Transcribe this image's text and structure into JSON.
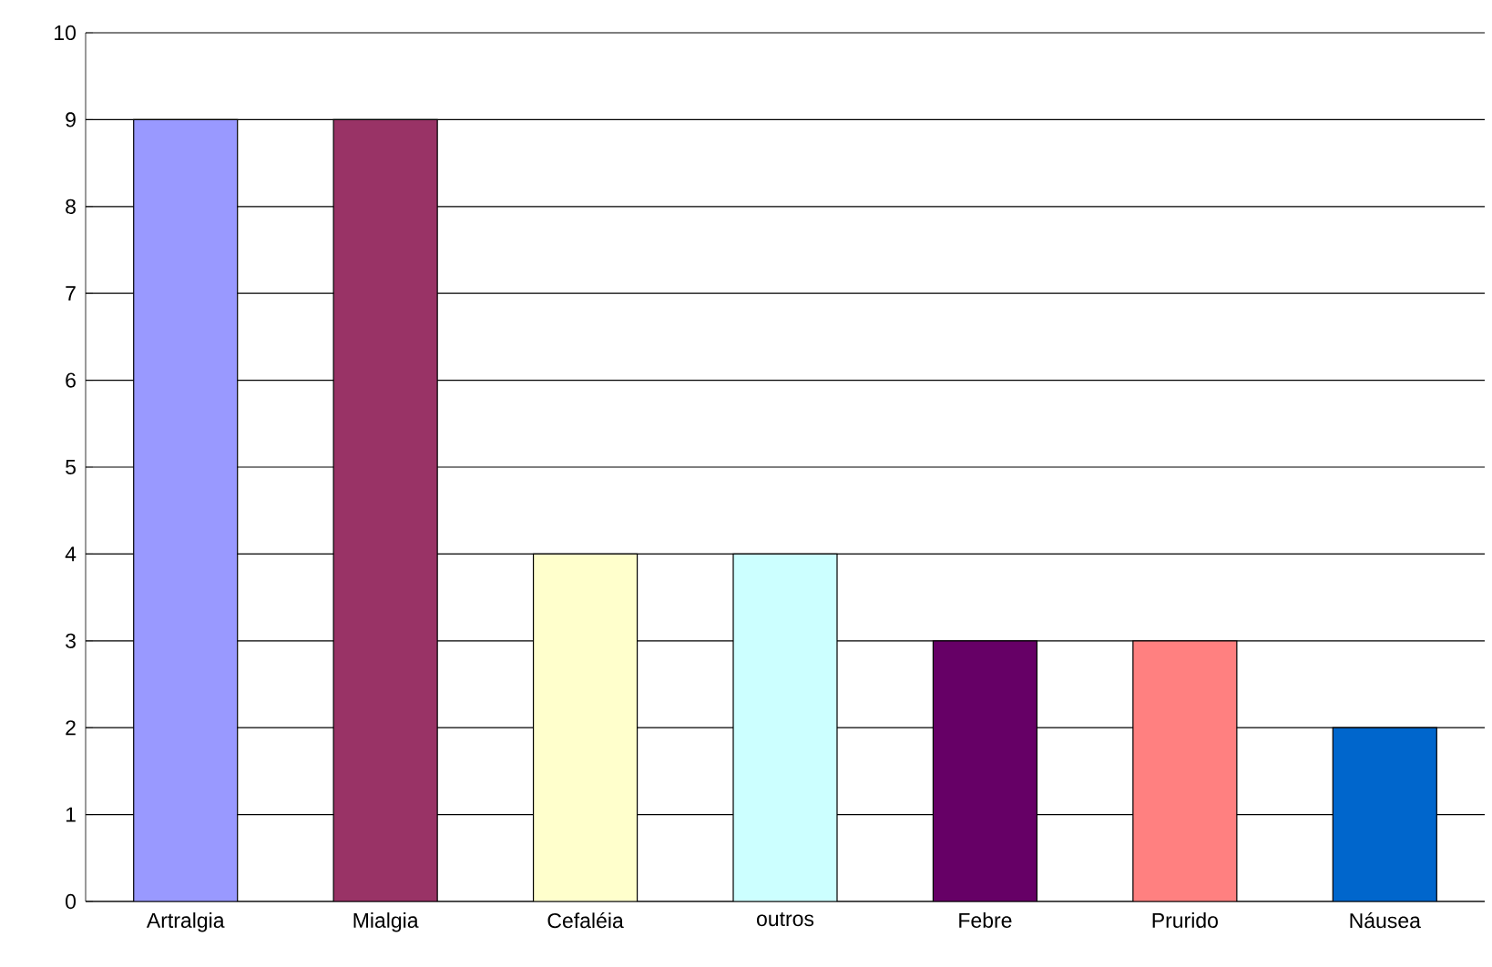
{
  "chart_data": {
    "type": "bar",
    "categories": [
      "Artralgia",
      "Mialgia",
      "Cefaléia",
      "outros",
      "Febre",
      "Prurido",
      "Náusea"
    ],
    "values": [
      9,
      9,
      4,
      4,
      3,
      3,
      2
    ],
    "colors": [
      "#9999ff",
      "#993366",
      "#ffffcc",
      "#ccffff",
      "#660066",
      "#ff8080",
      "#0066cc"
    ],
    "ylim": [
      0,
      10
    ],
    "yticks": [
      0,
      1,
      2,
      3,
      4,
      5,
      6,
      7,
      8,
      9,
      10
    ],
    "grid": "y"
  }
}
